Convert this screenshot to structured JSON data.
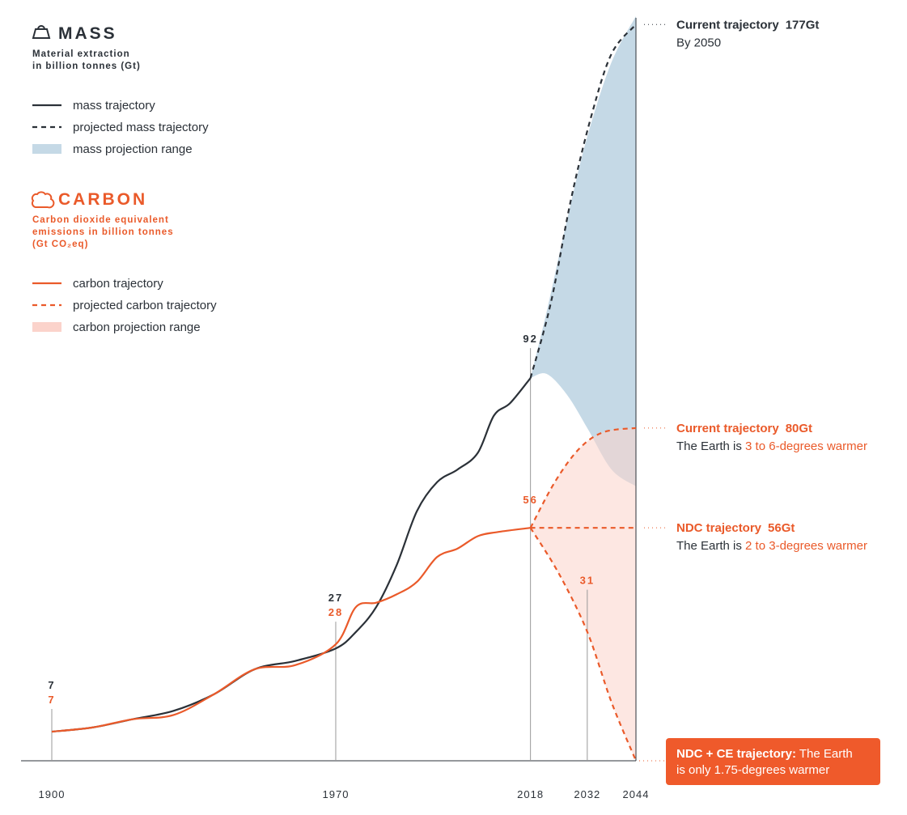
{
  "chart_data": {
    "type": "line",
    "legend_groups": [
      {
        "title": "MASS",
        "subtitle": [
          "Material extraction",
          "in billion tonnes (Gt)"
        ]
      },
      {
        "title": "CARBON",
        "subtitle": [
          "Carbon dioxide equivalent",
          "emissions in billion tonnes",
          "(Gt CO₂eq)"
        ]
      }
    ],
    "xlim": [
      1900,
      2044
    ],
    "xticks": [
      1900,
      1970,
      2018,
      2032,
      2044
    ],
    "ylim": [
      0,
      179
    ],
    "series": [
      {
        "name": "mass trajectory",
        "color": "#2b3138",
        "style": "solid",
        "x": [
          1900,
          1910,
          1920,
          1930,
          1940,
          1950,
          1960,
          1970,
          1975,
          1980,
          1985,
          1990,
          1995,
          2000,
          2005,
          2009,
          2013,
          2018
        ],
        "values": [
          7,
          8,
          10,
          12,
          16,
          22,
          24,
          27,
          31,
          37,
          47,
          60,
          67,
          70,
          74,
          83,
          86,
          92
        ]
      },
      {
        "name": "projected mass trajectory",
        "color": "#2b3138",
        "style": "dashed",
        "x": [
          2018,
          2023,
          2028,
          2033,
          2038,
          2044
        ],
        "values": [
          92,
          110,
          135,
          155,
          170,
          177
        ]
      },
      {
        "name": "mass projection range",
        "color": "#c5d9e6",
        "style": "range",
        "x": [
          2018,
          2022,
          2027,
          2032,
          2038,
          2044
        ],
        "values": [
          92,
          108,
          130,
          150,
          168,
          179
        ],
        "low": [
          92,
          93,
          88,
          80,
          70,
          66
        ]
      },
      {
        "name": "carbon trajectory",
        "color": "#ea5a2a",
        "style": "solid",
        "x": [
          1900,
          1910,
          1920,
          1930,
          1940,
          1950,
          1960,
          1970,
          1975,
          1980,
          1985,
          1990,
          1995,
          2000,
          2005,
          2010,
          2018
        ],
        "values": [
          7,
          8,
          10,
          11,
          16,
          22,
          23,
          28,
          37,
          38,
          40,
          43,
          49,
          51,
          54,
          55,
          56
        ]
      },
      {
        "name": "projected carbon trajectory",
        "color": "#ea5a2a",
        "style": "dashed",
        "x": [
          2018,
          2024,
          2030,
          2036,
          2044
        ],
        "values": [
          56,
          67,
          75,
          79,
          80
        ]
      },
      {
        "color": "#ea5a2a",
        "style": "dashed",
        "x": [
          2018,
          2044
        ],
        "values": [
          56,
          56
        ]
      },
      {
        "color": "#ea5a2a",
        "style": "dashed",
        "x": [
          2018,
          2025,
          2032,
          2038,
          2044
        ],
        "values": [
          56,
          45,
          31,
          14,
          0
        ]
      },
      {
        "name": "carbon projection range",
        "color": "#fbd3cb",
        "style": "range"
      }
    ],
    "annotations": [
      {
        "title": "Current trajectory",
        "value": "177Gt",
        "lines": [
          [
            "By 2050"
          ]
        ]
      },
      {
        "title": "Current trajectory",
        "value": "80Gt",
        "lines": [
          [
            "The Earth is ",
            "3 to 6-degrees warmer"
          ]
        ]
      },
      {
        "title": "NDC trajectory",
        "value": "56Gt",
        "lines": [
          [
            "The Earth is ",
            "2 to 3-degrees warmer"
          ]
        ]
      },
      {
        "title": "NDC + CE trajectory:",
        "lines": [
          [
            " The Earth"
          ],
          [
            "is only 1.75-degrees warmer"
          ]
        ]
      }
    ]
  }
}
